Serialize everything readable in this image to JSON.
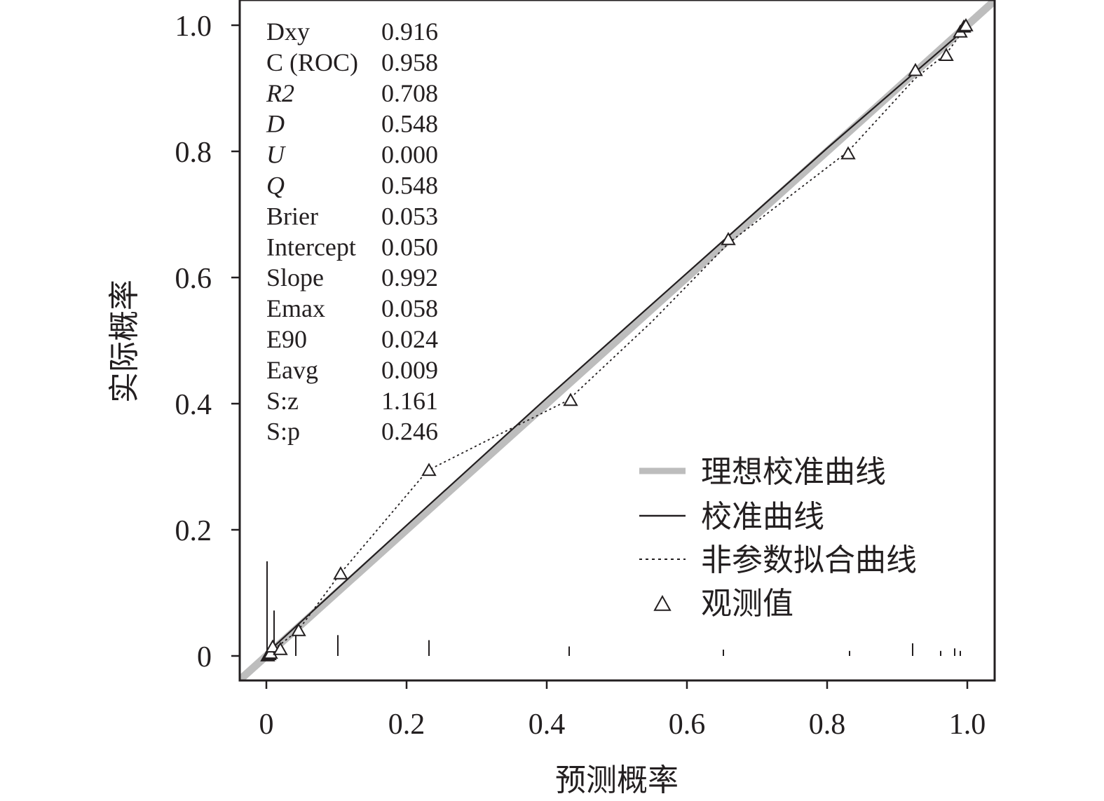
{
  "chart_data": {
    "type": "scatter",
    "xlabel": "预测概率",
    "ylabel": "实际概率",
    "xlim": [
      -0.04,
      1.04
    ],
    "ylim": [
      -0.04,
      1.04
    ],
    "xticks": [
      0,
      0.2,
      0.4,
      0.6,
      0.8,
      1.0
    ],
    "yticks": [
      0,
      0.2,
      0.4,
      0.6,
      0.8,
      1.0
    ],
    "xtick_labels": [
      "0",
      "0.2",
      "0.4",
      "0.6",
      "0.8",
      "1.0"
    ],
    "ytick_labels": [
      "0",
      "0.2",
      "0.4",
      "0.6",
      "0.8",
      "1.0"
    ],
    "stats": [
      {
        "name": "Dxy",
        "value": "0.916"
      },
      {
        "name": "C (ROC)",
        "value": "0.958"
      },
      {
        "name": "R2",
        "value": "0.708"
      },
      {
        "name": "D",
        "value": "0.548"
      },
      {
        "name": "U",
        "value": "0.000"
      },
      {
        "name": "Q",
        "value": "0.548"
      },
      {
        "name": "Brier",
        "value": "0.053"
      },
      {
        "name": "Intercept",
        "value": "0.050"
      },
      {
        "name": "Slope",
        "value": "0.992"
      },
      {
        "name": "Emax",
        "value": "0.058"
      },
      {
        "name": "E90",
        "value": "0.024"
      },
      {
        "name": "Eavg",
        "value": "0.009"
      },
      {
        "name": "S:z",
        "value": "1.161"
      },
      {
        "name": "S:p",
        "value": "0.246"
      }
    ],
    "legend_position": "bottom-right",
    "series": [
      {
        "name": "理想校准曲线",
        "style": "thick-gray",
        "color": "#bdbdbd",
        "x": [
          -0.04,
          1.04
        ],
        "y": [
          -0.04,
          1.04
        ]
      },
      {
        "name": "校准曲线",
        "style": "solid",
        "color": "#231f20",
        "x": [
          0,
          0.2,
          0.4,
          0.6,
          0.8,
          1.0
        ],
        "y": [
          0.004,
          0.207,
          0.409,
          0.607,
          0.805,
          0.997
        ]
      },
      {
        "name": "非参数拟合曲线",
        "style": "dotted",
        "color": "#231f20",
        "x": [
          0.0,
          0.01,
          0.045,
          0.105,
          0.23,
          0.33,
          0.43,
          0.55,
          0.66,
          0.83,
          0.925,
          0.97,
          0.99,
          1.0
        ],
        "y": [
          0.0,
          0.01,
          0.04,
          0.13,
          0.294,
          0.35,
          0.405,
          0.53,
          0.655,
          0.8,
          0.915,
          0.955,
          0.985,
          0.997
        ]
      },
      {
        "name": "观测值",
        "style": "triangle-markers",
        "color": "#231f20",
        "x": [
          0.002,
          0.004,
          0.006,
          0.009,
          0.02,
          0.046,
          0.106,
          0.232,
          0.434,
          0.659,
          0.83,
          0.926,
          0.97,
          0.99,
          0.995,
          0.998
        ],
        "y": [
          0.0,
          0.002,
          0.004,
          0.014,
          0.01,
          0.04,
          0.13,
          0.294,
          0.405,
          0.66,
          0.796,
          0.928,
          0.952,
          0.989,
          0.997,
          0.999
        ]
      }
    ],
    "rug": {
      "x": [
        0.001,
        0.011,
        0.042,
        0.102,
        0.232,
        0.432,
        0.652,
        0.832,
        0.922,
        0.962,
        0.982,
        0.99
      ],
      "height": [
        0.15,
        0.072,
        0.04,
        0.033,
        0.025,
        0.015,
        0.01,
        0.008,
        0.02,
        0.008,
        0.012,
        0.008
      ]
    }
  }
}
